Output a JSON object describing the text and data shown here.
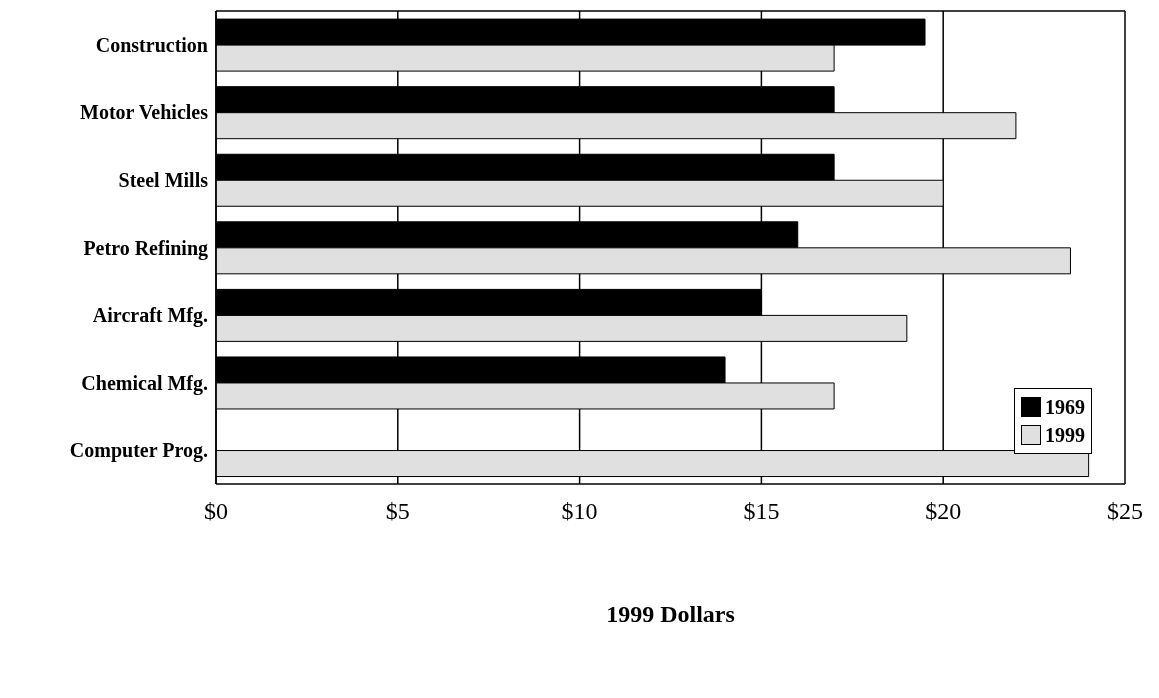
{
  "chart_data": {
    "type": "bar",
    "orientation": "horizontal",
    "xlabel": "1999 Dollars",
    "categories": [
      "Construction",
      "Motor Vehicles",
      "Steel Mills",
      "Petro Refining",
      "Aircraft Mfg.",
      "Chemical Mfg.",
      "Computer Prog."
    ],
    "series": [
      {
        "name": "1969",
        "color": "#000000",
        "values": [
          19.5,
          17,
          17,
          16,
          15,
          14,
          null
        ]
      },
      {
        "name": "1999",
        "color": "#e0e0e0",
        "values": [
          17,
          22,
          20,
          23.5,
          19,
          17,
          24
        ]
      }
    ],
    "xlim": [
      0,
      25
    ],
    "xticks": [
      {
        "value": 0,
        "label": "$0"
      },
      {
        "value": 5,
        "label": "$5"
      },
      {
        "value": 10,
        "label": "$10"
      },
      {
        "value": 15,
        "label": "$15"
      },
      {
        "value": 20,
        "label": "$20"
      },
      {
        "value": 25,
        "label": "$25"
      }
    ],
    "grid": "x",
    "legend": "right"
  }
}
